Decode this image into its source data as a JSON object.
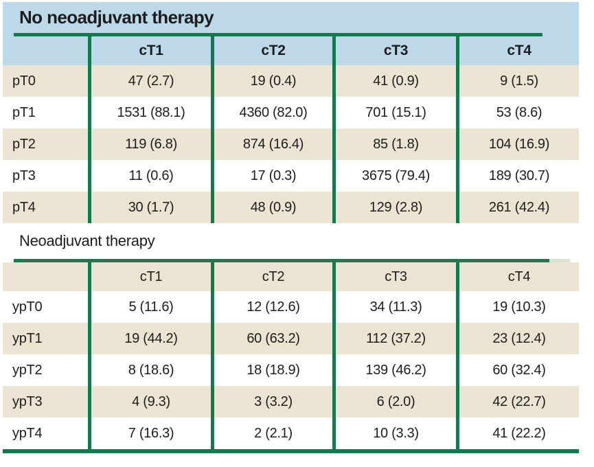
{
  "colors": {
    "header_blue": "#bdd8e9",
    "row_beige": "#ebe4d2",
    "row_white": "#ffffff",
    "rule_green": "#14794e",
    "rule_green_faint": "#d9e4d0",
    "text": "#1d1d1d"
  },
  "tables": [
    {
      "title": "No neoadjuvant therapy",
      "columns": [
        "cT1",
        "cT2",
        "cT3",
        "cT4"
      ],
      "rows": [
        {
          "label": "pT0",
          "values": [
            "47 (2.7)",
            "19 (0.4)",
            "41 (0.9)",
            "9 (1.5)"
          ]
        },
        {
          "label": "pT1",
          "values": [
            "1531 (88.1)",
            "4360 (82.0)",
            "701 (15.1)",
            "53 (8.6)"
          ]
        },
        {
          "label": "pT2",
          "values": [
            "119 (6.8)",
            "874 (16.4)",
            "85 (1.8)",
            "104 (16.9)"
          ]
        },
        {
          "label": "pT3",
          "values": [
            "11 (0.6)",
            "17 (0.3)",
            "3675 (79.4)",
            "189 (30.7)"
          ]
        },
        {
          "label": "pT4",
          "values": [
            "30 (1.7)",
            "48 (0.9)",
            "129 (2.8)",
            "261 (42.4)"
          ]
        }
      ]
    },
    {
      "title": "Neoadjuvant therapy",
      "columns": [
        "cT1",
        "cT2",
        "cT3",
        "cT4"
      ],
      "rows": [
        {
          "label": "ypT0",
          "values": [
            "5 (11.6)",
            "12 (12.6)",
            "34 (11.3)",
            "19 (10.3)"
          ]
        },
        {
          "label": "ypT1",
          "values": [
            "19 (44.2)",
            "60 (63.2)",
            "112 (37.2)",
            "23 (12.4)"
          ]
        },
        {
          "label": "ypT2",
          "values": [
            "8 (18.6)",
            "18 (18.9)",
            "139 (46.2)",
            "60 (32.4)"
          ]
        },
        {
          "label": "ypT3",
          "values": [
            "4 (9.3)",
            "3 (3.2)",
            "6 (2.0)",
            "42 (22.7)"
          ]
        },
        {
          "label": "ypT4",
          "values": [
            "7 (16.3)",
            "2 (2.1)",
            "10 (3.3)",
            "41 (22.2)"
          ]
        }
      ]
    }
  ]
}
